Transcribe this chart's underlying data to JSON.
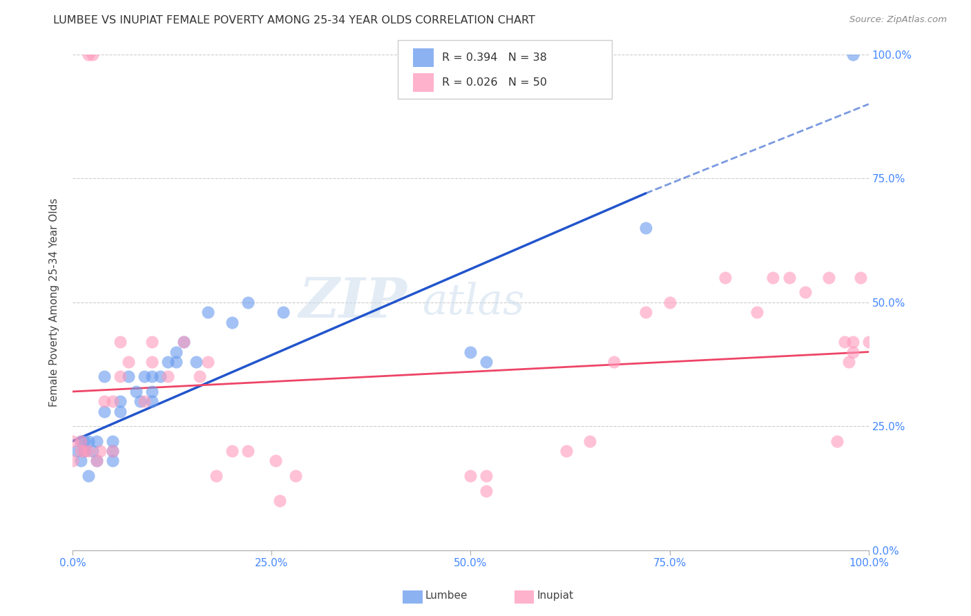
{
  "title": "LUMBEE VS INUPIAT FEMALE POVERTY AMONG 25-34 YEAR OLDS CORRELATION CHART",
  "source": "Source: ZipAtlas.com",
  "ylabel": "Female Poverty Among 25-34 Year Olds",
  "xlim": [
    0,
    1.0
  ],
  "ylim": [
    0,
    1.0
  ],
  "xticks": [
    0.0,
    0.25,
    0.5,
    0.75,
    1.0
  ],
  "yticks": [
    0.0,
    0.25,
    0.5,
    0.75,
    1.0
  ],
  "xticklabels": [
    "0.0%",
    "25.0%",
    "50.0%",
    "75.0%",
    "100.0%"
  ],
  "yticklabels": [
    "0.0%",
    "25.0%",
    "50.0%",
    "75.0%",
    "100.0%"
  ],
  "lumbee_color": "#6699EE",
  "inupiat_color": "#FF99BB",
  "lumbee_line_color": "#2255CC",
  "inupiat_line_color": "#EE4466",
  "lumbee_line_start_x": 0.0,
  "lumbee_line_start_y": 0.22,
  "lumbee_line_solid_end_x": 0.72,
  "lumbee_line_solid_end_y": 0.72,
  "lumbee_line_dash_end_x": 1.0,
  "lumbee_line_dash_end_y": 0.9,
  "inupiat_line_start_x": 0.0,
  "inupiat_line_start_y": 0.32,
  "inupiat_line_end_x": 1.0,
  "inupiat_line_end_y": 0.4,
  "watermark_zip": "ZIP",
  "watermark_atlas": "atlas",
  "background_color": "#FFFFFF",
  "lumbee_x": [
    0.005,
    0.01,
    0.01,
    0.015,
    0.015,
    0.02,
    0.02,
    0.025,
    0.03,
    0.03,
    0.04,
    0.04,
    0.05,
    0.05,
    0.05,
    0.06,
    0.06,
    0.07,
    0.08,
    0.085,
    0.09,
    0.1,
    0.1,
    0.1,
    0.11,
    0.12,
    0.13,
    0.13,
    0.14,
    0.155,
    0.17,
    0.2,
    0.22,
    0.265,
    0.5,
    0.52,
    0.72,
    0.98
  ],
  "lumbee_y": [
    0.2,
    0.22,
    0.18,
    0.2,
    0.22,
    0.15,
    0.22,
    0.2,
    0.18,
    0.22,
    0.28,
    0.35,
    0.18,
    0.2,
    0.22,
    0.3,
    0.28,
    0.35,
    0.32,
    0.3,
    0.35,
    0.32,
    0.35,
    0.3,
    0.35,
    0.38,
    0.4,
    0.38,
    0.42,
    0.38,
    0.48,
    0.46,
    0.5,
    0.48,
    0.4,
    0.38,
    0.65,
    1.0
  ],
  "inupiat_x": [
    0.0,
    0.0,
    0.01,
    0.01,
    0.015,
    0.02,
    0.02,
    0.025,
    0.03,
    0.035,
    0.04,
    0.05,
    0.05,
    0.06,
    0.06,
    0.07,
    0.09,
    0.1,
    0.1,
    0.12,
    0.14,
    0.16,
    0.17,
    0.18,
    0.2,
    0.22,
    0.255,
    0.26,
    0.28,
    0.5,
    0.52,
    0.52,
    0.62,
    0.65,
    0.68,
    0.72,
    0.75,
    0.82,
    0.86,
    0.88,
    0.9,
    0.92,
    0.95,
    0.96,
    0.97,
    0.975,
    0.98,
    0.98,
    0.99,
    1.0
  ],
  "inupiat_y": [
    0.18,
    0.22,
    0.2,
    0.22,
    0.2,
    0.2,
    1.0,
    1.0,
    0.18,
    0.2,
    0.3,
    0.2,
    0.3,
    0.35,
    0.42,
    0.38,
    0.3,
    0.42,
    0.38,
    0.35,
    0.42,
    0.35,
    0.38,
    0.15,
    0.2,
    0.2,
    0.18,
    0.1,
    0.15,
    0.15,
    0.15,
    0.12,
    0.2,
    0.22,
    0.38,
    0.48,
    0.5,
    0.55,
    0.48,
    0.55,
    0.55,
    0.52,
    0.55,
    0.22,
    0.42,
    0.38,
    0.42,
    0.4,
    0.55,
    0.42
  ]
}
